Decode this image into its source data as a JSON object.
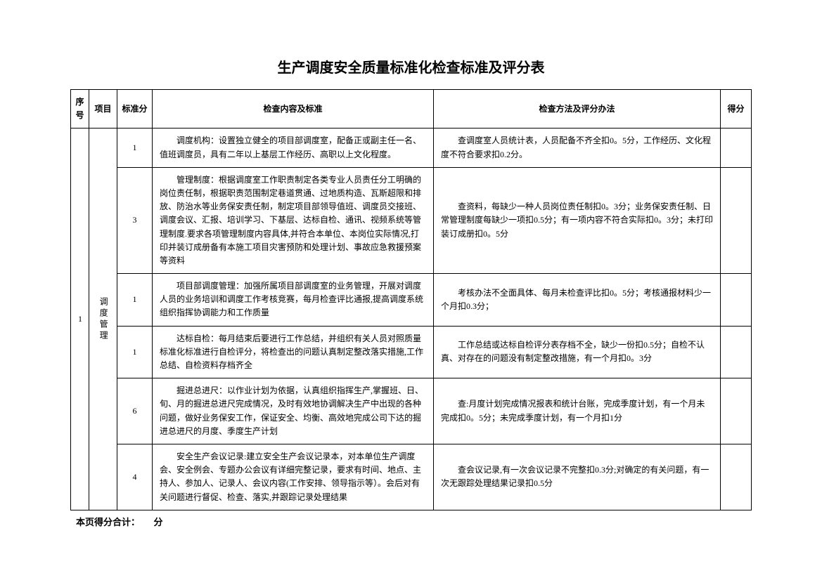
{
  "title": "生产调度安全质量标准化检查标准及评分表",
  "headers": {
    "seq": "序号",
    "project": "项目",
    "standard_score": "标准分",
    "content": "检查内容及标准",
    "method": "检查方法及评分办法",
    "result": "得分"
  },
  "group": {
    "seq": "1",
    "project": "调度管理"
  },
  "rows": [
    {
      "score": "1",
      "content": "调度机构：设置独立健全的项目部调度室，配备正或副主任一名、值班调度员，具有二年以上基层工作经历、高职以上文化程度。",
      "method": "查调度室人员统计表，人员配备不齐全扣0。5分，工作经历、文化程度不符合要求扣0.2分。"
    },
    {
      "score": "3",
      "content": "管理制度：根据调度室工作职责制定各类专业人员责任分工明确的岗位责任制，根据职责范围制定巷道贯通、过地质构造、瓦斯超限和排放、防治水等业务保安责任制，制定项目部领导值班、调度员交接班、调度会议、汇报、培训学习、下基层、达标自检、通讯、视频系统等管理制度.要求各项管理制度内容具体,并符合本单位、本岗位实际情况,打印并装订成册备有本施工项目灾害预防和处理计划、事故应急救援预案等资料",
      "method": "查资料，每缺少一种人员岗位责任制扣0。3分；业务保安责任制、日常管理制度每缺少一项扣0.5分；有一项内容不符合实际扣0。3分；未打印装订成册扣0。5分"
    },
    {
      "score": "1",
      "content": "项目部调度管理：加强所属项目部调度室的业务管理，开展对调度人员的业务培训和调度工作考核竞赛，每月检查评比通报,提高调度系统组织指挥协调能力和工作质量",
      "method": "考核办法不全面具体、每月未检查评比扣0。5分；考核通报材料少一个月扣0.3分；"
    },
    {
      "score": "1",
      "content": "达标自检：每月结束后要进行工作总结，并组织有关人员对照质量标准化标准进行自检评分，将检查出的问题认真制定整改落实措施,工作总结、自检资料存档齐全",
      "method": "工作总结或达标自检评分表存档不全，缺少一份扣0.5分；自检不认真、对存在的问题没有制定整改措施，有一个月扣0。3分"
    },
    {
      "score": "6",
      "content": "掘进总进尺：以作业计划为依据，认真组织指挥生产,掌握班、日、旬、月的掘进总进尺完成情况，及时有效地协调解决生产中出现的各种问题，做好业务保安工作，保证安全、均衡、高效地完成公司下达的掘进总进尺的月度、季度生产计划",
      "method": "查:月度计划完成情况报表和统计台账，完成季度计划，有一个月未完成扣0。5分；未完成季度计划，有一个月扣1分"
    },
    {
      "score": "4",
      "content": "安全生产会议记录:建立安全生产会议记录本，对本单位生产调度会、安全例会、专题办公会议有详细完整记录，要求有时间、地点、主持人、参加人、记录人、会议内容(工作安排、领导指示等）。会后对有关问题进行督促、检查、落实,并跟踪记录处理结果",
      "method": "查会议记录,有一次会议记录不完整扣0.3分;对确定的有关问题，有一次无跟踪处理结果记录扣0.5分"
    }
  ],
  "footer": "本页得分合计：　　分"
}
